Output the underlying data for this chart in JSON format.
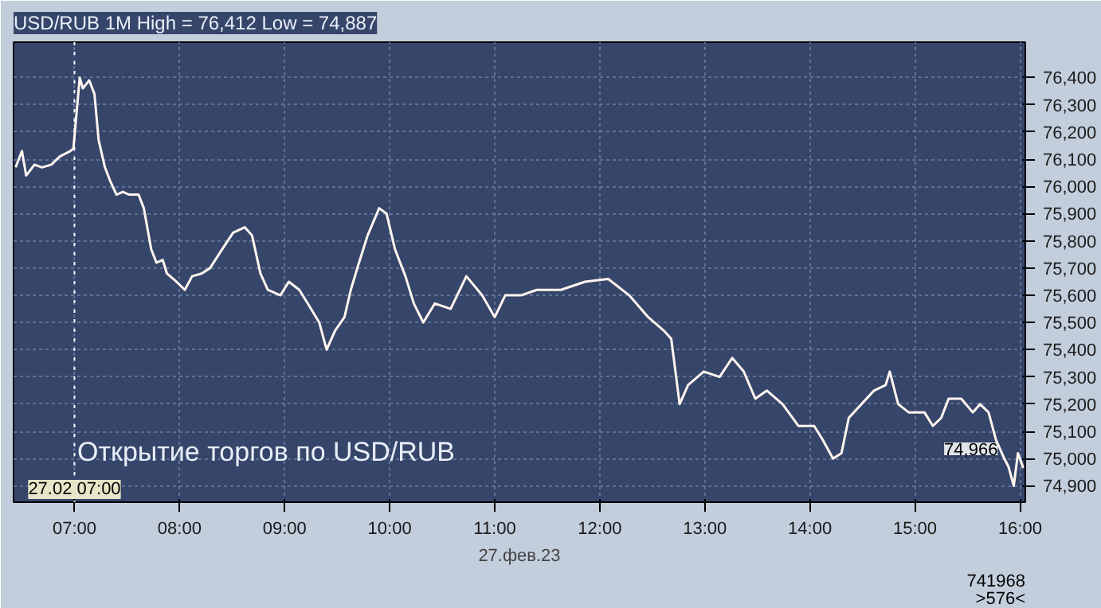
{
  "chart_data": {
    "type": "line",
    "title": "USD/RUB 1M High = 76,412 Low = 74,887",
    "xlabel": "27.фев.23",
    "x": [
      6.44,
      6.5,
      6.54,
      6.62,
      6.69,
      6.78,
      6.86,
      6.96,
      6.99,
      7.02,
      7.05,
      7.08,
      7.14,
      7.19,
      7.23,
      7.29,
      7.34,
      7.4,
      7.46,
      7.52,
      7.61,
      7.66,
      7.73,
      7.78,
      7.84,
      7.88,
      7.97,
      8.05,
      8.12,
      8.21,
      8.29,
      8.39,
      8.51,
      8.62,
      8.69,
      8.77,
      8.84,
      8.96,
      9.04,
      9.14,
      9.22,
      9.33,
      9.4,
      9.48,
      9.57,
      9.63,
      9.7,
      9.79,
      9.9,
      9.97,
      10.05,
      10.15,
      10.23,
      10.32,
      10.43,
      10.58,
      10.73,
      10.88,
      11.0,
      11.1,
      11.25,
      11.4,
      11.63,
      11.86,
      12.08,
      12.28,
      12.46,
      12.61,
      12.68,
      12.76,
      12.84,
      12.99,
      13.14,
      13.26,
      13.37,
      13.48,
      13.59,
      13.74,
      13.89,
      14.04,
      14.12,
      14.22,
      14.3,
      14.37,
      14.49,
      14.61,
      14.72,
      14.76,
      14.84,
      14.94,
      15.09,
      15.17,
      15.25,
      15.32,
      15.44,
      15.55,
      15.62,
      15.7,
      15.77,
      15.85,
      15.89,
      15.94,
      15.98,
      16.03
    ],
    "series": [
      {
        "color": "#fff5ee",
        "values": [
          76070,
          76130,
          76040,
          76080,
          76070,
          76080,
          76110,
          76130,
          76140,
          76270,
          76400,
          76360,
          76390,
          76340,
          76170,
          76070,
          76020,
          75970,
          75980,
          75970,
          75970,
          75920,
          75770,
          75720,
          75730,
          75680,
          75650,
          75620,
          75670,
          75680,
          75700,
          75760,
          75830,
          75850,
          75820,
          75680,
          75620,
          75600,
          75650,
          75620,
          75570,
          75500,
          75400,
          75470,
          75520,
          75620,
          75710,
          75820,
          75920,
          75900,
          75770,
          75670,
          75570,
          75500,
          75570,
          75550,
          75670,
          75600,
          75520,
          75600,
          75600,
          75620,
          75620,
          75650,
          75660,
          75600,
          75520,
          75470,
          75440,
          75200,
          75270,
          75320,
          75300,
          75370,
          75320,
          75220,
          75250,
          75200,
          75120,
          75120,
          75070,
          75000,
          75020,
          75150,
          75200,
          75250,
          75270,
          75320,
          75200,
          75170,
          75170,
          75120,
          75150,
          75220,
          75220,
          75170,
          75200,
          75170,
          75070,
          75000,
          74970,
          74900,
          75020,
          74966
        ]
      }
    ],
    "xlim": [
      6.42,
      16.05
    ],
    "ylim": [
      74840,
      76530
    ],
    "xticks": [
      {
        "value": 7,
        "label": "07:00"
      },
      {
        "value": 8,
        "label": "08:00"
      },
      {
        "value": 9,
        "label": "09:00"
      },
      {
        "value": 10,
        "label": "10:00"
      },
      {
        "value": 11,
        "label": "11:00"
      },
      {
        "value": 12,
        "label": "12:00"
      },
      {
        "value": 13,
        "label": "13:00"
      },
      {
        "value": 14,
        "label": "14:00"
      },
      {
        "value": 15,
        "label": "15:00"
      },
      {
        "value": 16,
        "label": "16:00"
      }
    ],
    "yticks": [
      {
        "value": 74900,
        "label": "74,900"
      },
      {
        "value": 75000,
        "label": "75,000"
      },
      {
        "value": 75100,
        "label": "75,100"
      },
      {
        "value": 75200,
        "label": "75,200"
      },
      {
        "value": 75300,
        "label": "75,300"
      },
      {
        "value": 75400,
        "label": "75,400"
      },
      {
        "value": 75500,
        "label": "75,500"
      },
      {
        "value": 75600,
        "label": "75,600"
      },
      {
        "value": 75700,
        "label": "75,700"
      },
      {
        "value": 75800,
        "label": "75,800"
      },
      {
        "value": 75900,
        "label": "75,900"
      },
      {
        "value": 76000,
        "label": "76,000"
      },
      {
        "value": 76100,
        "label": "76,100"
      },
      {
        "value": 76200,
        "label": "76,200"
      },
      {
        "value": 76300,
        "label": "76,300"
      },
      {
        "value": 76400,
        "label": "76,400"
      }
    ],
    "ref_lines": [
      {
        "axis": "x",
        "value": 7,
        "label": "27.02 07:00",
        "color": "#ffffff",
        "line_style": "dotted"
      }
    ],
    "annotations": [
      "Открытие торгов по USD/RUB",
      {
        "text": "74,966",
        "x": 16.03,
        "y": 74966
      },
      "741968",
      ">576<"
    ],
    "grid": true,
    "line_style": "solid",
    "marker": "none"
  }
}
